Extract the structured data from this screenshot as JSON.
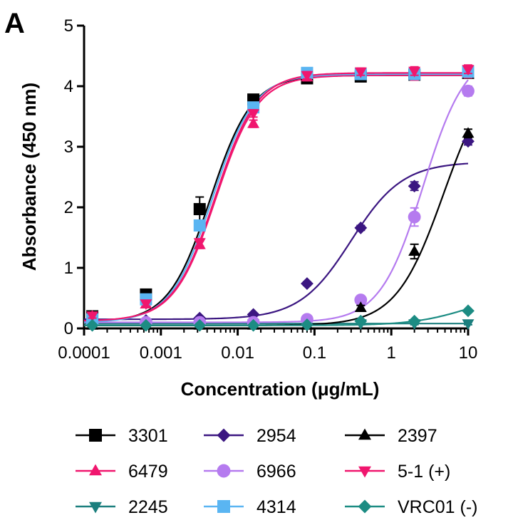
{
  "chart_data": {
    "type": "scatter",
    "panel_label": "A",
    "title": "",
    "xlabel": "Concentration (μg/mL)",
    "ylabel": "Absorbance (450 nm)",
    "xscale": "log",
    "xlim": [
      0.0001,
      10
    ],
    "ylim": [
      0,
      5
    ],
    "xticks": [
      0.0001,
      0.001,
      0.01,
      0.1,
      1,
      10
    ],
    "xtick_labels": [
      "0.0001",
      "0.001",
      "0.01",
      "0.1",
      "1",
      "10"
    ],
    "yticks": [
      0,
      1,
      2,
      3,
      4,
      5
    ],
    "ytick_labels": [
      "0",
      "1",
      "2",
      "3",
      "4",
      "5"
    ],
    "grid": false,
    "legend_position": "bottom",
    "x": [
      0.000128,
      0.00064,
      0.0032,
      0.016,
      0.08,
      0.4,
      2,
      10
    ],
    "series": [
      {
        "name": "3301",
        "color": "#000000",
        "marker": "square",
        "values": [
          0.2,
          0.56,
          1.97,
          3.78,
          4.13,
          4.16,
          4.19,
          4.22
        ],
        "errors": [
          0.05,
          0.05,
          0.2,
          0.06,
          0.06,
          0.06,
          0.06,
          0.07
        ],
        "fit": {
          "bottom": 0.1,
          "top": 4.18,
          "ec50": 0.0044,
          "hill": 1.6
        }
      },
      {
        "name": "6479",
        "color": "#f0166e",
        "marker": "triangle-up",
        "values": [
          0.2,
          0.4,
          1.38,
          3.38,
          4.15,
          4.2,
          4.17,
          4.21
        ],
        "errors": [
          0.04,
          0.04,
          0.06,
          0.06,
          0.06,
          0.06,
          0.07,
          0.07
        ],
        "fit": {
          "bottom": 0.12,
          "top": 4.18,
          "ec50": 0.0052,
          "hill": 1.6
        }
      },
      {
        "name": "2245",
        "color": "#1c7f7e",
        "marker": "triangle-down",
        "values": [
          0.1,
          0.09,
          0.08,
          0.08,
          0.08,
          0.08,
          0.08,
          0.08
        ],
        "errors": [
          0.02,
          0.02,
          0.02,
          0.02,
          0.02,
          0.02,
          0.02,
          0.02
        ],
        "fit": {
          "bottom": 0.08,
          "top": 0.08,
          "ec50": 1,
          "hill": 1
        }
      },
      {
        "name": "2954",
        "color": "#3b1681",
        "marker": "diamond",
        "values": [
          0.13,
          0.13,
          0.17,
          0.23,
          0.74,
          1.66,
          2.35,
          3.09
        ],
        "errors": [
          0.02,
          0.02,
          0.02,
          0.02,
          0.03,
          0.04,
          0.07,
          0.06
        ],
        "fit": {
          "bottom": 0.15,
          "top": 2.75,
          "ec50": 0.3,
          "hill": 1.3
        }
      },
      {
        "name": "6966",
        "color": "#b57bef",
        "marker": "circle",
        "values": [
          0.1,
          0.1,
          0.1,
          0.1,
          0.15,
          0.47,
          1.84,
          3.92
        ],
        "errors": [
          0.02,
          0.02,
          0.02,
          0.02,
          0.02,
          0.04,
          0.15,
          0.08
        ],
        "fit": {
          "bottom": 0.1,
          "top": 4.6,
          "ec50": 2.6,
          "hill": 1.55
        }
      },
      {
        "name": "4314",
        "color": "#5ab5f2",
        "marker": "square",
        "values": [
          0.15,
          0.48,
          1.7,
          3.65,
          4.22,
          4.2,
          4.2,
          4.24
        ],
        "errors": [
          0.04,
          0.04,
          0.08,
          0.06,
          0.06,
          0.06,
          0.06,
          0.07
        ],
        "fit": {
          "bottom": 0.1,
          "top": 4.2,
          "ec50": 0.0047,
          "hill": 1.6
        }
      },
      {
        "name": "2397",
        "color": "#000000",
        "marker": "triangle-up",
        "values": [
          0.05,
          0.05,
          0.05,
          0.05,
          0.05,
          0.34,
          1.27,
          3.22
        ],
        "errors": [
          0.01,
          0.01,
          0.01,
          0.01,
          0.01,
          0.04,
          0.12,
          0.07
        ],
        "fit": {
          "bottom": 0.05,
          "top": 4.4,
          "ec50": 4.8,
          "hill": 1.4
        }
      },
      {
        "name": "5-1 (+)",
        "color": "#f0166e",
        "marker": "triangle-down",
        "values": [
          0.21,
          0.41,
          1.42,
          3.55,
          4.18,
          4.24,
          4.25,
          4.28
        ],
        "errors": [
          0.04,
          0.04,
          0.06,
          0.06,
          0.06,
          0.06,
          0.07,
          0.07
        ],
        "fit": {
          "bottom": 0.12,
          "top": 4.22,
          "ec50": 0.0051,
          "hill": 1.6
        }
      },
      {
        "name": "VRC01 (-)",
        "color": "#1c8c83",
        "marker": "diamond",
        "values": [
          0.05,
          0.05,
          0.05,
          0.05,
          0.06,
          0.12,
          0.12,
          0.29
        ],
        "errors": [
          0.01,
          0.01,
          0.01,
          0.01,
          0.01,
          0.02,
          0.02,
          0.02
        ],
        "fit": {
          "bottom": 0.05,
          "top": 0.6,
          "ec50": 10,
          "hill": 1.2
        }
      }
    ],
    "legend_order": [
      "3301",
      "2954",
      "2397",
      "6479",
      "6966",
      "5-1 (+)",
      "2245",
      "4314",
      "VRC01 (-)"
    ]
  }
}
